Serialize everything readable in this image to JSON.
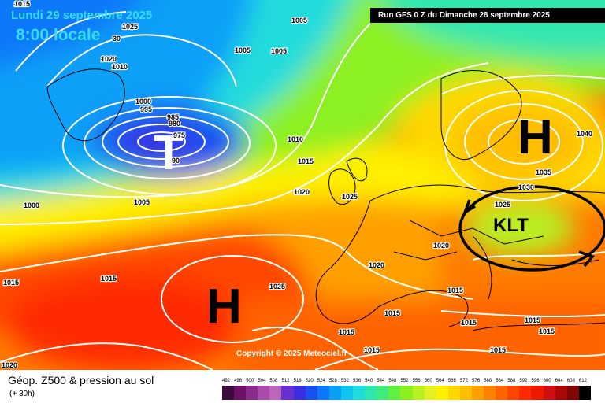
{
  "header": {
    "date": "Lundi 29 septembre 2025",
    "time": "8:00 locale",
    "run": "Run GFS 0 Z du Dimanche 28 septembre 2025"
  },
  "copyright": "Copyright © 2025 Meteociel.fr",
  "footer": {
    "title": "Géop. Z500 & pression au sol",
    "subtitle": "(+ 30h)"
  },
  "pressure_systems": [
    {
      "kind": "low",
      "label": "T"
    },
    {
      "kind": "high",
      "label": "H"
    },
    {
      "kind": "high",
      "label": "H"
    },
    {
      "kind": "annotation",
      "label": "KLT"
    }
  ],
  "isobar_labels": [
    "1015",
    "1025",
    "30",
    "1005",
    "1020",
    "1010",
    "1005",
    "1005",
    "1000",
    "995",
    "985",
    "980",
    "975",
    "90",
    "1010",
    "1015",
    "1020",
    "1025",
    "1000",
    "1005",
    "1015",
    "1015",
    "1020",
    "1020",
    "1025",
    "1015",
    "1015",
    "1015",
    "1015",
    "1015",
    "1015",
    "1015",
    "1015",
    "1020",
    "1025",
    "1030",
    "1035",
    "1040"
  ],
  "scale": {
    "labels": [
      "492",
      "496",
      "500",
      "504",
      "508",
      "512",
      "516",
      "520",
      "524",
      "528",
      "532",
      "536",
      "540",
      "544",
      "548",
      "552",
      "556",
      "560",
      "564",
      "568",
      "572",
      "576",
      "580",
      "584",
      "588",
      "592",
      "596",
      "600",
      "604",
      "608",
      "612"
    ],
    "colors": [
      "#3a0a3a",
      "#6e1066",
      "#8a2a8a",
      "#aa4aaa",
      "#bb66bb",
      "#6a2fd0",
      "#3b30e0",
      "#1a50f0",
      "#0a78f8",
      "#0aa0f8",
      "#10c4f0",
      "#20dcdc",
      "#30e6b0",
      "#40ec80",
      "#60f040",
      "#8cf020",
      "#b8f020",
      "#e4f020",
      "#fff000",
      "#ffd800",
      "#ffbe00",
      "#ffa000",
      "#ff8200",
      "#ff6400",
      "#ff4600",
      "#ff2a00",
      "#ee1a00",
      "#d01010",
      "#a80808",
      "#800404",
      "#000000"
    ]
  }
}
